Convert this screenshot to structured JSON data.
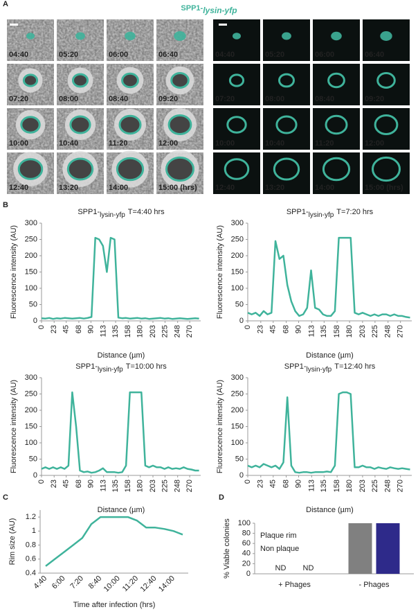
{
  "figure": {
    "panel_labels": [
      "A",
      "B",
      "C",
      "D"
    ],
    "panel_a": {
      "title_prefix": "SPP1-",
      "title_subscript": "lysin-yfp",
      "left_times": [
        "04:40",
        "05:20",
        "06:00",
        "06:40",
        "07:20",
        "08:00",
        "08:40",
        "09:20",
        "10:00",
        "10:40",
        "11:20",
        "12:00",
        "12:40",
        "13:20",
        "14:00",
        "15:00 (hrs)"
      ],
      "right_times": [
        "04:40",
        "05:20",
        "06:00",
        "06:40",
        "07:20",
        "08:00",
        "08:40",
        "09:20",
        "10:00",
        "10:40",
        "11:20",
        "12:00",
        "12:40",
        "13:20",
        "14:00",
        "15:00 (hrs)"
      ]
    }
  },
  "chart_data": [
    {
      "type": "line",
      "title_prefix": "SPP1-",
      "title_subscript": "lysin-yfp",
      "title_suffix": "T=4:40 hrs",
      "xlabel": "Distance (µm)",
      "ylabel": "Fluorescence intensity (AU)",
      "color": "#3fb39b",
      "x": [
        0,
        7,
        14,
        21,
        28,
        35,
        42,
        49,
        56,
        63,
        70,
        77,
        84,
        91,
        98,
        105,
        112,
        119,
        126,
        133,
        140,
        147,
        154,
        161,
        168,
        175,
        182,
        189,
        196,
        203,
        210,
        217,
        224,
        231,
        238,
        245,
        252,
        259,
        266,
        273,
        280,
        287
      ],
      "values": [
        8,
        7,
        9,
        6,
        8,
        7,
        9,
        8,
        7,
        8,
        9,
        7,
        9,
        12,
        255,
        250,
        230,
        150,
        255,
        250,
        10,
        8,
        9,
        7,
        8,
        9,
        7,
        8,
        6,
        7,
        8,
        9,
        7,
        8,
        6,
        7,
        8,
        7,
        6,
        7,
        8,
        7
      ],
      "xlim": [
        0,
        290
      ],
      "xticks": [
        0,
        23,
        45,
        68,
        90,
        113,
        135,
        158,
        180,
        203,
        225,
        248,
        270
      ],
      "ylim": [
        0,
        300
      ],
      "yticks": [
        0,
        50,
        100,
        150,
        200,
        250,
        300
      ]
    },
    {
      "type": "line",
      "title_prefix": "SPP1-",
      "title_subscript": "lysin-yfp",
      "title_suffix": "T=7:20 hrs",
      "xlabel": "Distance (µm)",
      "ylabel": "Fluorescence intensity (AU)",
      "color": "#3fb39b",
      "x": [
        0,
        7,
        14,
        21,
        28,
        35,
        42,
        49,
        56,
        63,
        70,
        77,
        84,
        91,
        98,
        105,
        112,
        119,
        126,
        133,
        140,
        147,
        154,
        161,
        168,
        175,
        182,
        189,
        196,
        203,
        210,
        217,
        224,
        231,
        238,
        245,
        252,
        259,
        266,
        273,
        280,
        287
      ],
      "values": [
        25,
        20,
        25,
        15,
        30,
        20,
        25,
        245,
        190,
        200,
        110,
        60,
        30,
        15,
        20,
        40,
        155,
        40,
        35,
        20,
        15,
        15,
        30,
        255,
        255,
        255,
        255,
        25,
        20,
        25,
        20,
        15,
        20,
        15,
        20,
        20,
        15,
        20,
        15,
        15,
        12,
        10
      ],
      "xlim": [
        0,
        290
      ],
      "xticks": [
        0,
        23,
        45,
        68,
        90,
        113,
        135,
        158,
        180,
        203,
        225,
        248,
        270
      ],
      "ylim": [
        0,
        300
      ],
      "yticks": [
        0,
        50,
        100,
        150,
        200,
        250,
        300
      ]
    },
    {
      "type": "line",
      "title_prefix": "SPP1-",
      "title_subscript": "lysin-yfp",
      "title_suffix": "T=10:00 hrs",
      "xlabel": "Distance (µm)",
      "ylabel": "Fluorescence intensity (AU)",
      "color": "#3fb39b",
      "x": [
        0,
        7,
        14,
        21,
        28,
        35,
        42,
        49,
        56,
        63,
        70,
        77,
        84,
        91,
        98,
        105,
        112,
        119,
        126,
        133,
        140,
        147,
        154,
        161,
        168,
        175,
        182,
        189,
        196,
        203,
        210,
        217,
        224,
        231,
        238,
        245,
        252,
        259,
        266,
        273,
        280,
        287
      ],
      "values": [
        20,
        25,
        20,
        25,
        20,
        25,
        20,
        30,
        255,
        150,
        15,
        10,
        12,
        8,
        10,
        15,
        22,
        10,
        10,
        10,
        8,
        10,
        30,
        255,
        255,
        255,
        255,
        30,
        25,
        30,
        25,
        25,
        20,
        25,
        20,
        22,
        20,
        25,
        20,
        18,
        15,
        15
      ],
      "xlim": [
        0,
        290
      ],
      "xticks": [
        0,
        23,
        45,
        68,
        90,
        113,
        135,
        158,
        180,
        203,
        225,
        248,
        270
      ],
      "ylim": [
        0,
        300
      ],
      "yticks": [
        0,
        50,
        100,
        150,
        200,
        250,
        300
      ]
    },
    {
      "type": "line",
      "title_prefix": "SPP1-",
      "title_subscript": "lysin-yfp",
      "title_suffix": "T=12:40 hrs",
      "xlabel": "Distance (µm)",
      "ylabel": "Fluorescence intensity (AU)",
      "color": "#3fb39b",
      "x": [
        0,
        7,
        14,
        21,
        28,
        35,
        42,
        49,
        56,
        63,
        70,
        77,
        84,
        91,
        98,
        105,
        112,
        119,
        126,
        133,
        140,
        147,
        154,
        161,
        168,
        175,
        182,
        189,
        196,
        203,
        210,
        217,
        224,
        231,
        238,
        245,
        252,
        259,
        266,
        273,
        280,
        287
      ],
      "values": [
        30,
        25,
        30,
        25,
        35,
        30,
        25,
        30,
        20,
        40,
        240,
        30,
        10,
        8,
        10,
        10,
        8,
        10,
        10,
        10,
        12,
        10,
        30,
        250,
        255,
        255,
        250,
        25,
        25,
        30,
        25,
        25,
        20,
        25,
        22,
        20,
        25,
        22,
        20,
        22,
        20,
        18
      ],
      "xlim": [
        0,
        290
      ],
      "xticks": [
        0,
        23,
        45,
        68,
        90,
        113,
        135,
        158,
        180,
        203,
        225,
        248,
        270
      ],
      "ylim": [
        0,
        300
      ],
      "yticks": [
        0,
        50,
        100,
        150,
        200,
        250,
        300
      ]
    },
    {
      "type": "line",
      "xlabel": "Time after infection (hrs)",
      "ylabel": "Rim size (AU)",
      "color": "#3fb39b",
      "categories": [
        "4:40",
        null,
        "6:00",
        null,
        "7:20",
        null,
        "8:40",
        null,
        "10:00",
        null,
        "11:20",
        null,
        "12:40",
        null,
        "14:00",
        null
      ],
      "values": [
        0.5,
        0.6,
        0.7,
        0.8,
        0.9,
        1.1,
        1.2,
        1.2,
        1.2,
        1.2,
        1.15,
        1.05,
        1.05,
        1.03,
        1.0,
        0.95
      ],
      "ylim": [
        0.4,
        1.3
      ],
      "yticks": [
        0.4,
        0.6,
        0.8,
        1,
        1.2
      ]
    },
    {
      "type": "bar",
      "ylabel": "% Viable colonies",
      "categories": [
        "+ Phages",
        "- Phages"
      ],
      "series": [
        {
          "name": "Plaque rim",
          "color": "#808080",
          "values": [
            null,
            100
          ],
          "value_labels": [
            "ND",
            null
          ]
        },
        {
          "name": "Non plaque",
          "color": "#2e2a8a",
          "values": [
            null,
            100
          ],
          "value_labels": [
            "ND",
            null
          ]
        }
      ],
      "ylim": [
        0,
        100
      ],
      "yticks": [
        0,
        20,
        40,
        60,
        80,
        100
      ]
    }
  ]
}
